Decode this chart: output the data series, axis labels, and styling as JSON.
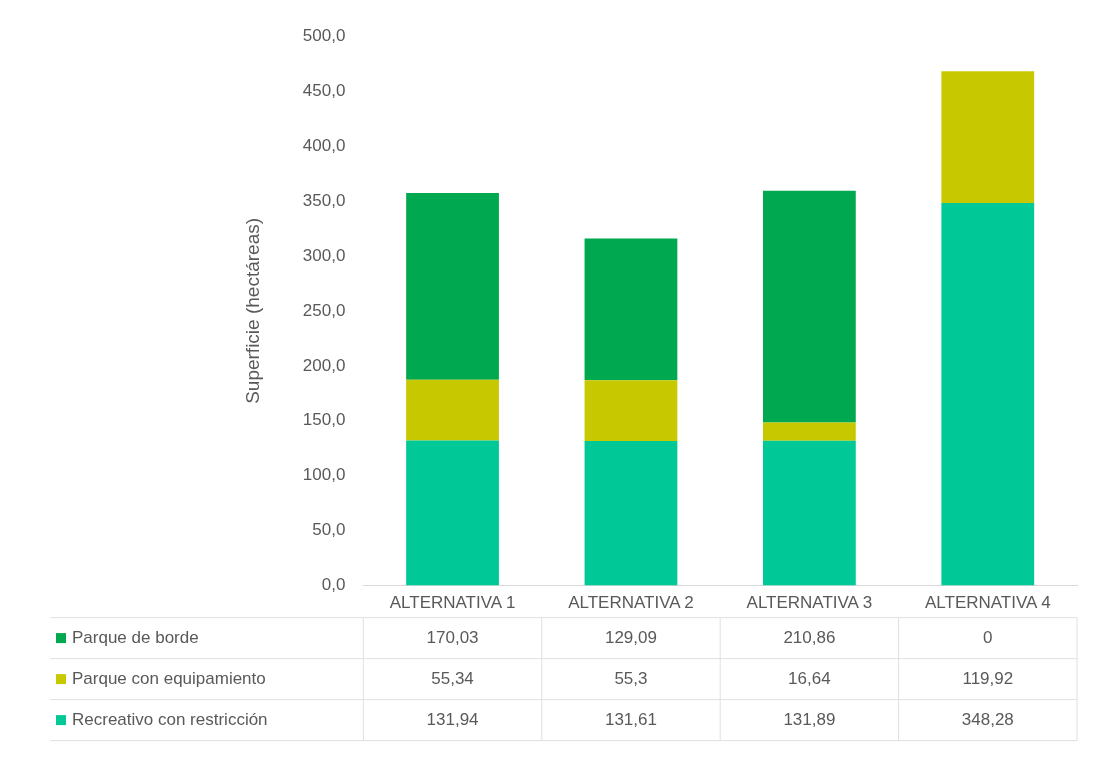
{
  "chart_data": {
    "type": "bar",
    "stacked": true,
    "categories": [
      "ALTERNATIVA 1",
      "ALTERNATIVA 2",
      "ALTERNATIVA 3",
      "ALTERNATIVA 4"
    ],
    "ylabel": "Superficie (hectáreas)",
    "ylim": [
      0,
      500
    ],
    "yticks": [
      {
        "value": 0,
        "label": "0,0"
      },
      {
        "value": 50,
        "label": "50,0"
      },
      {
        "value": 100,
        "label": "100,0"
      },
      {
        "value": 150,
        "label": "150,0"
      },
      {
        "value": 200,
        "label": "200,0"
      },
      {
        "value": 250,
        "label": "250,0"
      },
      {
        "value": 300,
        "label": "300,0"
      },
      {
        "value": 350,
        "label": "350,0"
      },
      {
        "value": 400,
        "label": "400,0"
      },
      {
        "value": 450,
        "label": "450,0"
      },
      {
        "value": 500,
        "label": "500,0"
      }
    ],
    "grid": false,
    "legend": "bottom",
    "series": [
      {
        "name": "Recreativo con restricción",
        "color": "#00c896",
        "values": [
          131.94,
          131.61,
          131.89,
          348.28
        ],
        "value_labels": [
          "131,94",
          "131,61",
          "131,89",
          "348,28"
        ]
      },
      {
        "name": "Parque con equipamiento",
        "color": "#c8c800",
        "values": [
          55.34,
          55.3,
          16.64,
          119.92
        ],
        "value_labels": [
          "55,34",
          "55,3",
          "16,64",
          "119,92"
        ]
      },
      {
        "name": "Parque de borde",
        "color": "#00a94f",
        "values": [
          170.03,
          129.09,
          210.86,
          0
        ],
        "value_labels": [
          "170,03",
          "129,09",
          "210,86",
          "0"
        ]
      }
    ]
  }
}
